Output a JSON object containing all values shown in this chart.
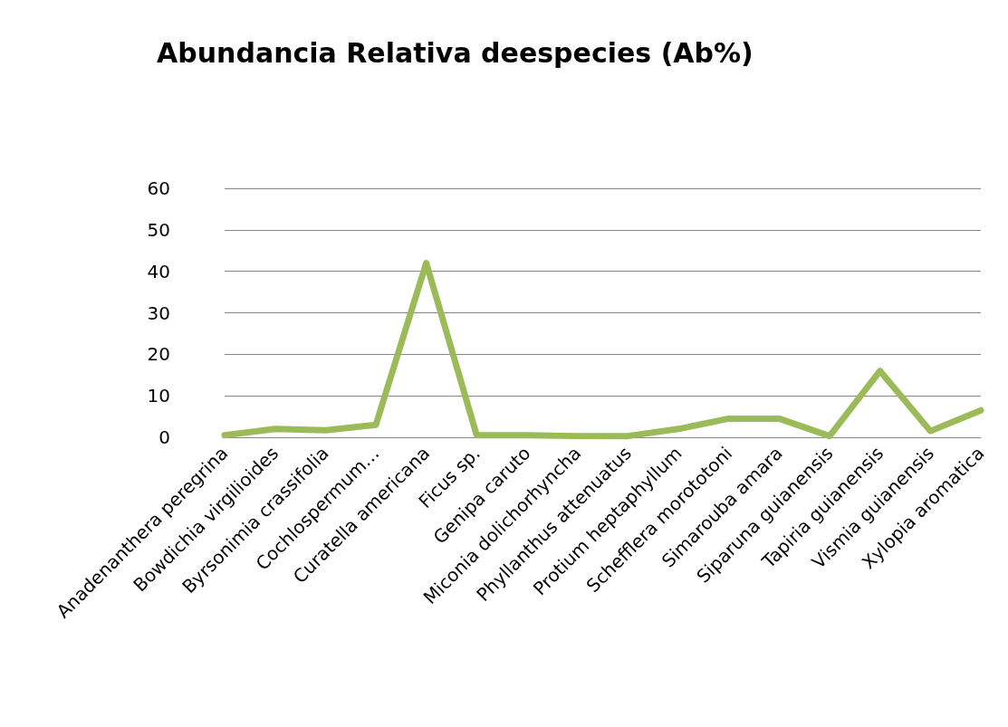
{
  "chart_data": {
    "type": "line",
    "title": "Abundancia Relativa deespecies (Ab%)",
    "categories": [
      "Anadenanthera peregrina",
      "Bowdichia virgilioides",
      "Byrsonimia crassifolia",
      "Cochlospermum…",
      "Curatella americana",
      "Ficus sp.",
      "Genipa caruto",
      "Miconia dolichorhyncha",
      "Phyllanthus attenuatus",
      "Protium heptaphyllum",
      "Schefflera morototoni",
      "Simarouba amara",
      "Siparuna guianensis",
      "Tapiria guianensis",
      "Vismia guianensis",
      "Xylopia aromatica"
    ],
    "series": [
      {
        "color": "#9bbb59",
        "values": [
          0.5,
          2,
          1.7,
          3,
          42,
          0.5,
          0.5,
          0.3,
          0.3,
          2,
          4.5,
          4.5,
          0.3,
          16,
          1.5,
          6.5
        ]
      }
    ],
    "ylim": [
      0,
      60
    ],
    "yticks": [
      0,
      10,
      20,
      30,
      40,
      50,
      60
    ],
    "grid": "y",
    "marker": "none",
    "line_style": "solid"
  }
}
